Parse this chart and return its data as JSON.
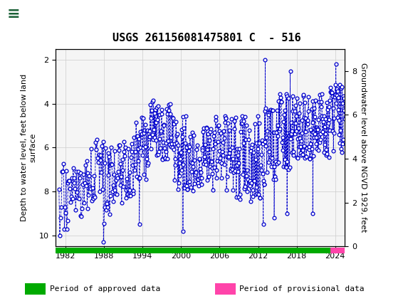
{
  "title": "USGS 261156081475801 C  - 516",
  "ylabel_left": "Depth to water level, feet below land\nsurface",
  "ylabel_right": "Groundwater level above NGVD 1929, feet",
  "xlim": [
    1980.5,
    2025.5
  ],
  "ylim_left": [
    10.5,
    1.5
  ],
  "ylim_right": [
    0.0,
    9.0
  ],
  "xticks": [
    1982,
    1988,
    1994,
    2000,
    2006,
    2012,
    2018,
    2024
  ],
  "yticks_left": [
    2.0,
    4.0,
    6.0,
    8.0,
    10.0
  ],
  "yticks_right": [
    0.0,
    2.0,
    4.0,
    6.0,
    8.0
  ],
  "line_color": "#0000CC",
  "marker_color": "#0000CC",
  "plot_bg_color": "#f5f5f5",
  "fig_bg_color": "#ffffff",
  "header_color": "#1b6137",
  "approved_bar_color": "#00aa00",
  "provisional_bar_color": "#ff44aa",
  "approved_bar_start": 1980.5,
  "approved_bar_end": 2023.2,
  "provisional_bar_start": 2023.2,
  "provisional_bar_end": 2025.5,
  "legend_approved": "Period of approved data",
  "legend_provisional": "Period of provisional data",
  "title_fontsize": 11,
  "tick_fontsize": 8,
  "label_fontsize": 8
}
